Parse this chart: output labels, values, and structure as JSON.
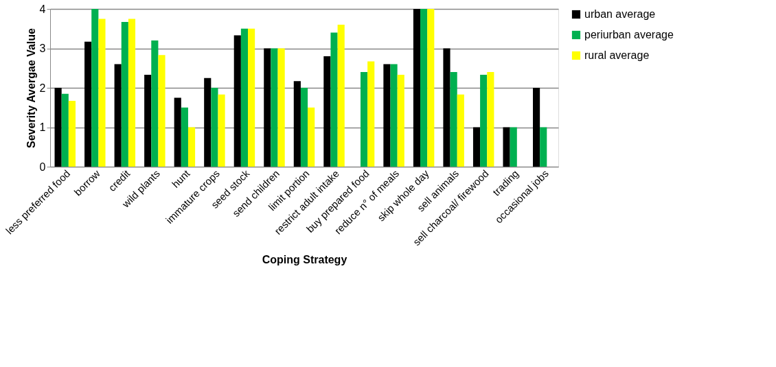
{
  "chart_data": {
    "type": "bar",
    "xlabel": "Coping Strategy",
    "ylabel": "Severity Avergae Value",
    "categories": [
      "less preferred food",
      "borrow",
      "credit",
      "wild plants",
      "hunt",
      "immature crops",
      "seed stock",
      "send children",
      "limit portion",
      "restrict adult intake",
      "buy prepared food",
      "reduce n° of meals",
      "skip whole day",
      "sell animals",
      "sell charcoal/ firewood",
      "trading",
      "occasional jobs"
    ],
    "series": [
      {
        "name": "urban average",
        "color": "#000000",
        "values": [
          2.0,
          3.17,
          2.6,
          2.33,
          1.75,
          2.25,
          3.33,
          3,
          2.17,
          2.8,
          null,
          2.6,
          4,
          3,
          1,
          1,
          2
        ]
      },
      {
        "name": "periurban average",
        "color": "#00b050",
        "values": [
          1.85,
          4,
          3.67,
          3.2,
          1.5,
          2,
          3.5,
          3,
          2,
          3.4,
          2.4,
          2.6,
          4,
          2.4,
          2.33,
          1,
          1
        ]
      },
      {
        "name": "rural average",
        "color": "#ffff00",
        "values": [
          1.67,
          3.75,
          3.75,
          2.83,
          1,
          1.83,
          3.5,
          3,
          1.5,
          3.6,
          2.67,
          2.33,
          4,
          1.83,
          2.4,
          null,
          null
        ]
      }
    ],
    "ylim": [
      0,
      4
    ],
    "yticks": [
      0,
      1,
      2,
      3,
      4
    ],
    "grid": "y",
    "legend": "right"
  }
}
